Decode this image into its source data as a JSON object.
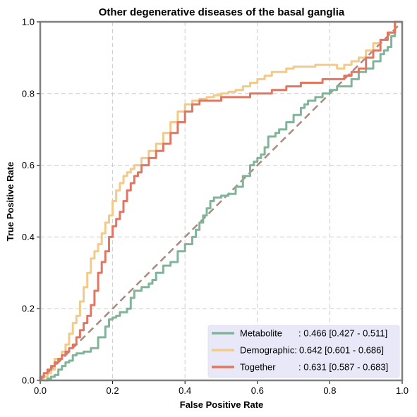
{
  "chart_data": {
    "type": "line",
    "title": "Other degenerative diseases of the basal ganglia",
    "xlabel": "False Positive Rate",
    "ylabel": "True Positive Rate",
    "xlim": [
      0,
      1
    ],
    "ylim": [
      0,
      1
    ],
    "xticks": [
      "0.0",
      "0.2",
      "0.4",
      "0.6",
      "0.8",
      "1.0"
    ],
    "yticks": [
      "0.0",
      "0.2",
      "0.4",
      "0.6",
      "0.8",
      "1.0"
    ],
    "grid": true,
    "legend_position": "lower-right",
    "diagonal": {
      "x": [
        0,
        1
      ],
      "y": [
        0,
        1
      ],
      "color": "#a88a80"
    },
    "series": [
      {
        "name": "Metabolite",
        "label": ": 0.466 [0.427 - 0.511]",
        "color": "#82b49a",
        "x": [
          0,
          0.02,
          0.03,
          0.04,
          0.05,
          0.06,
          0.07,
          0.08,
          0.09,
          0.1,
          0.12,
          0.14,
          0.16,
          0.18,
          0.19,
          0.2,
          0.21,
          0.22,
          0.24,
          0.25,
          0.26,
          0.28,
          0.3,
          0.31,
          0.32,
          0.34,
          0.36,
          0.38,
          0.4,
          0.42,
          0.43,
          0.44,
          0.45,
          0.46,
          0.47,
          0.48,
          0.5,
          0.52,
          0.54,
          0.56,
          0.58,
          0.59,
          0.6,
          0.61,
          0.62,
          0.63,
          0.65,
          0.66,
          0.68,
          0.7,
          0.72,
          0.73,
          0.74,
          0.76,
          0.78,
          0.8,
          0.82,
          0.84,
          0.86,
          0.88,
          0.9,
          0.92,
          0.94,
          0.95,
          0.96,
          0.97,
          0.98,
          1.0
        ],
        "y": [
          0,
          0,
          0.005,
          0.01,
          0.015,
          0.03,
          0.04,
          0.05,
          0.055,
          0.07,
          0.075,
          0.08,
          0.09,
          0.12,
          0.15,
          0.17,
          0.175,
          0.18,
          0.19,
          0.2,
          0.23,
          0.25,
          0.26,
          0.27,
          0.28,
          0.3,
          0.32,
          0.33,
          0.36,
          0.38,
          0.4,
          0.42,
          0.44,
          0.46,
          0.48,
          0.5,
          0.51,
          0.515,
          0.52,
          0.54,
          0.57,
          0.6,
          0.61,
          0.62,
          0.63,
          0.65,
          0.68,
          0.69,
          0.7,
          0.72,
          0.74,
          0.76,
          0.77,
          0.78,
          0.79,
          0.8,
          0.81,
          0.82,
          0.82,
          0.84,
          0.86,
          0.87,
          0.89,
          0.91,
          0.92,
          0.93,
          0.96,
          1.0
        ]
      },
      {
        "name": "Demographic:",
        "label": " 0.642 [0.601 - 0.686]",
        "color": "#f2ca8a",
        "x": [
          0,
          0.01,
          0.02,
          0.03,
          0.04,
          0.06,
          0.07,
          0.08,
          0.09,
          0.1,
          0.11,
          0.12,
          0.13,
          0.14,
          0.15,
          0.16,
          0.17,
          0.18,
          0.19,
          0.2,
          0.21,
          0.22,
          0.23,
          0.24,
          0.25,
          0.26,
          0.28,
          0.3,
          0.32,
          0.34,
          0.36,
          0.38,
          0.4,
          0.42,
          0.44,
          0.46,
          0.48,
          0.5,
          0.52,
          0.54,
          0.56,
          0.58,
          0.6,
          0.62,
          0.64,
          0.66,
          0.68,
          0.7,
          0.72,
          0.74,
          0.76,
          0.78,
          0.8,
          0.82,
          0.84,
          0.86,
          0.88,
          0.9,
          0.92,
          0.94,
          0.96,
          0.98,
          1.0
        ],
        "y": [
          0,
          0,
          0.01,
          0.02,
          0.03,
          0.06,
          0.08,
          0.1,
          0.13,
          0.16,
          0.18,
          0.22,
          0.26,
          0.3,
          0.34,
          0.36,
          0.38,
          0.41,
          0.44,
          0.46,
          0.5,
          0.53,
          0.55,
          0.57,
          0.58,
          0.59,
          0.6,
          0.62,
          0.64,
          0.66,
          0.69,
          0.72,
          0.75,
          0.77,
          0.78,
          0.785,
          0.79,
          0.795,
          0.8,
          0.805,
          0.81,
          0.82,
          0.83,
          0.84,
          0.85,
          0.86,
          0.86,
          0.87,
          0.875,
          0.875,
          0.875,
          0.88,
          0.88,
          0.88,
          0.87,
          0.88,
          0.89,
          0.9,
          0.92,
          0.94,
          0.95,
          0.97,
          1.0
        ]
      },
      {
        "name": "Together",
        "label": ": 0.631 [0.587 - 0.683]",
        "color": "#e27761",
        "x": [
          0,
          0.01,
          0.02,
          0.03,
          0.04,
          0.05,
          0.06,
          0.07,
          0.08,
          0.09,
          0.1,
          0.11,
          0.12,
          0.13,
          0.14,
          0.15,
          0.16,
          0.17,
          0.18,
          0.19,
          0.2,
          0.21,
          0.22,
          0.23,
          0.24,
          0.25,
          0.26,
          0.27,
          0.28,
          0.3,
          0.32,
          0.34,
          0.36,
          0.38,
          0.4,
          0.42,
          0.44,
          0.46,
          0.48,
          0.5,
          0.52,
          0.54,
          0.56,
          0.58,
          0.6,
          0.62,
          0.64,
          0.66,
          0.68,
          0.7,
          0.72,
          0.74,
          0.76,
          0.78,
          0.8,
          0.82,
          0.84,
          0.86,
          0.88,
          0.9,
          0.92,
          0.94,
          0.96,
          0.98,
          1.0
        ],
        "y": [
          0,
          0.01,
          0.02,
          0.03,
          0.04,
          0.05,
          0.06,
          0.07,
          0.08,
          0.09,
          0.1,
          0.12,
          0.14,
          0.16,
          0.18,
          0.21,
          0.25,
          0.3,
          0.33,
          0.36,
          0.4,
          0.43,
          0.45,
          0.47,
          0.5,
          0.53,
          0.55,
          0.57,
          0.58,
          0.6,
          0.62,
          0.64,
          0.66,
          0.69,
          0.72,
          0.75,
          0.77,
          0.78,
          0.78,
          0.78,
          0.79,
          0.79,
          0.79,
          0.79,
          0.8,
          0.8,
          0.8,
          0.81,
          0.81,
          0.82,
          0.82,
          0.83,
          0.83,
          0.83,
          0.84,
          0.84,
          0.84,
          0.85,
          0.86,
          0.87,
          0.9,
          0.92,
          0.95,
          0.97,
          1.0
        ]
      }
    ]
  }
}
